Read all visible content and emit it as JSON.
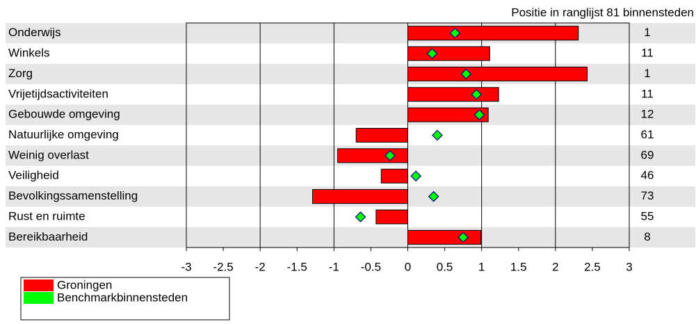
{
  "chart_data": {
    "type": "bar",
    "rank_title": "Positie in ranglijst 81 binnensteden",
    "categories": [
      "Onderwijs",
      "Winkels",
      "Zorg",
      "Vrijetijdsactiviteiten",
      "Gebouwde omgeving",
      "Natuurlijke omgeving",
      "Weinig overlast",
      "Veiligheid",
      "Bevolkingssamenstelling",
      "Rust en ruimte",
      "Bereikbaarheid"
    ],
    "series": [
      {
        "name": "Groningen",
        "color": "#ff0000",
        "values": [
          2.31,
          1.11,
          2.43,
          1.23,
          1.09,
          -0.7,
          -0.95,
          -0.36,
          -1.29,
          -0.43,
          0.99
        ]
      },
      {
        "name": "Benchmarkbinnensteden",
        "color": "#00ff00",
        "values": [
          0.64,
          0.33,
          0.79,
          0.93,
          0.97,
          0.4,
          -0.24,
          0.11,
          0.35,
          -0.64,
          0.75
        ]
      }
    ],
    "ranks": [
      1,
      11,
      1,
      11,
      12,
      61,
      69,
      46,
      73,
      55,
      8
    ],
    "xlim": [
      -3,
      3
    ],
    "xticks": [
      -3,
      -2.5,
      -2,
      -1.5,
      -1,
      -0.5,
      0,
      0.5,
      1,
      1.5,
      2,
      2.5,
      3
    ],
    "grid": true
  }
}
